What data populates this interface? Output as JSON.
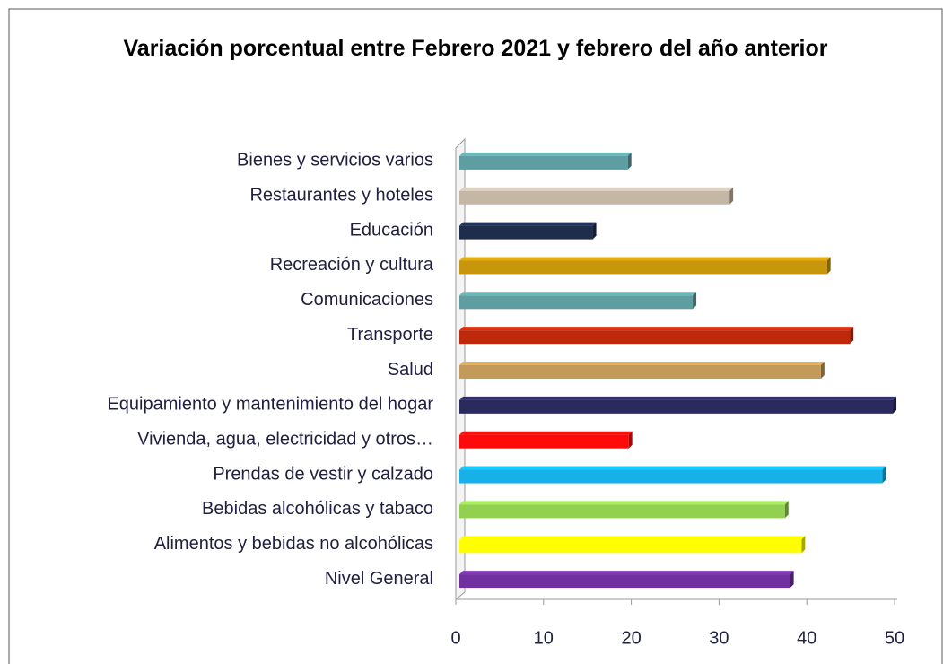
{
  "chart_data": {
    "type": "bar",
    "orientation": "horizontal",
    "title": "Variación porcentual entre Febrero 2021 y febrero del año anterior",
    "categories": [
      "Bienes y servicios varios",
      "Restaurantes y hoteles",
      "Educación",
      "Recreación y cultura",
      "Comunicaciones",
      "Transporte",
      "Salud",
      "Equipamiento y mantenimiento del hogar",
      "Vivienda, agua, electricidad y otros…",
      "Prendas de vestir y calzado",
      "Bebidas alcohólicas y tabaco",
      "Alimentos y bebidas no alcohólicas",
      "Nivel General"
    ],
    "values": [
      19.6,
      31.2,
      15.6,
      42.3,
      27.0,
      44.9,
      41.6,
      49.8,
      19.7,
      48.6,
      37.5,
      39.4,
      38.1
    ],
    "colors": [
      "#5f9ea0",
      "#c4b7a6",
      "#1f2d4d",
      "#c8960c",
      "#5f9ea0",
      "#c0280c",
      "#c49a5a",
      "#2b2a5c",
      "#ff0a0a",
      "#17b0e8",
      "#92d050",
      "#ffff00",
      "#7030a0"
    ],
    "xlim": [
      0,
      50
    ],
    "xticks": [
      0,
      10,
      20,
      30,
      40,
      50
    ],
    "grid": false
  }
}
